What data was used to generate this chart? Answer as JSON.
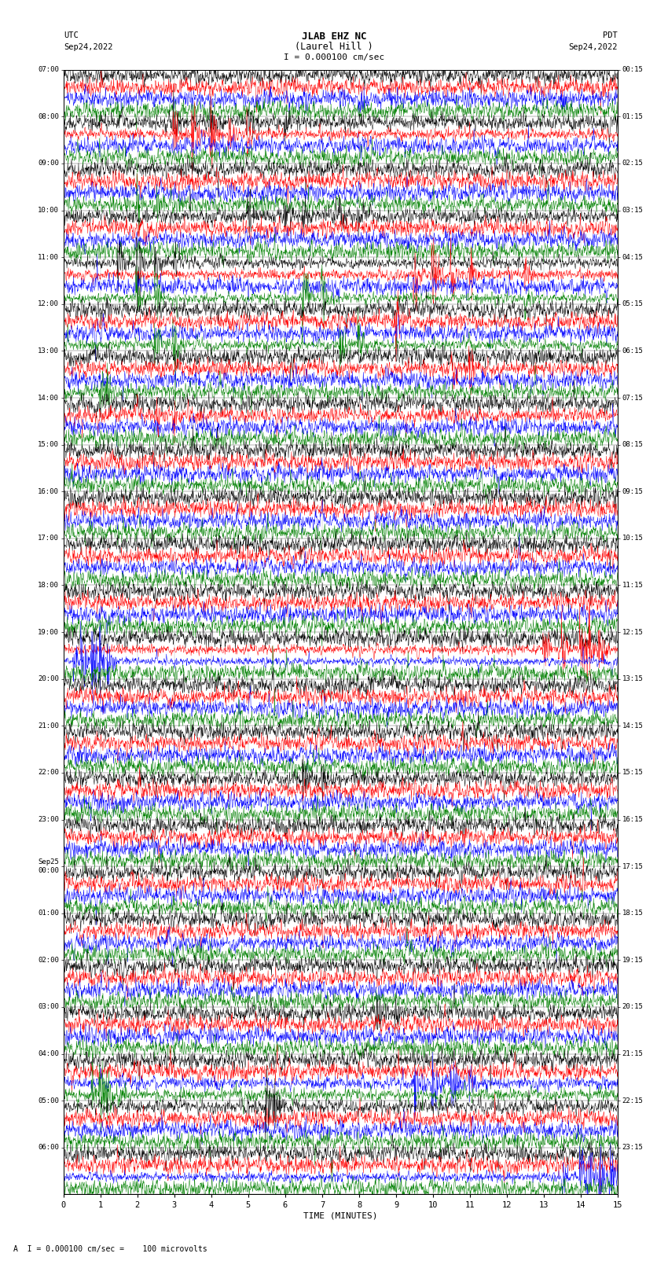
{
  "title_line1": "JLAB EHZ NC",
  "title_line2": "(Laurel Hill )",
  "scale_text": "I = 0.000100 cm/sec",
  "label_left_line1": "UTC",
  "label_left_line2": "Sep24,2022",
  "label_right_line1": "PDT",
  "label_right_line2": "Sep24,2022",
  "footer_text": "A  I = 0.000100 cm/sec =    100 microvolts",
  "xlabel": "TIME (MINUTES)",
  "utc_labels": [
    "07:00",
    "08:00",
    "09:00",
    "10:00",
    "11:00",
    "12:00",
    "13:00",
    "14:00",
    "15:00",
    "16:00",
    "17:00",
    "18:00",
    "19:00",
    "20:00",
    "21:00",
    "22:00",
    "23:00",
    "Sep25\n00:00",
    "01:00",
    "02:00",
    "03:00",
    "04:00",
    "05:00",
    "06:00"
  ],
  "pdt_labels": [
    "00:15",
    "01:15",
    "02:15",
    "03:15",
    "04:15",
    "05:15",
    "06:15",
    "07:15",
    "08:15",
    "09:15",
    "10:15",
    "11:15",
    "12:15",
    "13:15",
    "14:15",
    "15:15",
    "16:15",
    "17:15",
    "18:15",
    "19:15",
    "20:15",
    "21:15",
    "22:15",
    "23:15"
  ],
  "num_rows": 24,
  "traces_per_row": 4,
  "colors": [
    "black",
    "red",
    "blue",
    "green"
  ],
  "bg_color": "#ffffff",
  "minutes": 15,
  "fig_width": 8.5,
  "fig_height": 16.13,
  "dpi": 100,
  "events": [
    {
      "row": 0,
      "ti": 2,
      "times": [
        6.5,
        7.5,
        8.0,
        9.0,
        10.0,
        11.0,
        13.5
      ],
      "amps": [
        0.3,
        0.25,
        0.2,
        0.15,
        0.15,
        0.15,
        0.15
      ]
    },
    {
      "row": 1,
      "ti": 1,
      "times": [
        3.0,
        3.5,
        4.0,
        4.5,
        5.0
      ],
      "amps": [
        0.5,
        0.7,
        0.8,
        0.5,
        0.4
      ]
    },
    {
      "row": 1,
      "ti": 0,
      "times": [
        3.0,
        4.0,
        5.0,
        6.0
      ],
      "amps": [
        0.25,
        0.3,
        0.25,
        0.2
      ]
    },
    {
      "row": 2,
      "ti": 3,
      "times": [
        2.0,
        2.5
      ],
      "amps": [
        0.3,
        0.25
      ]
    },
    {
      "row": 3,
      "ti": 0,
      "times": [
        5.0,
        6.0,
        6.5,
        7.5,
        8.0
      ],
      "amps": [
        0.4,
        0.3,
        0.25,
        0.2,
        0.2
      ]
    },
    {
      "row": 4,
      "ti": 0,
      "times": [
        1.5,
        2.0,
        2.5,
        3.0
      ],
      "amps": [
        0.5,
        0.8,
        0.6,
        0.4
      ]
    },
    {
      "row": 4,
      "ti": 1,
      "times": [
        9.5,
        10.0,
        10.5,
        11.0,
        12.5
      ],
      "amps": [
        0.6,
        0.9,
        0.7,
        0.5,
        0.4
      ]
    },
    {
      "row": 4,
      "ti": 3,
      "times": [
        2.0,
        2.5,
        6.5,
        7.0,
        12.5
      ],
      "amps": [
        0.7,
        0.9,
        0.8,
        0.6,
        0.4
      ]
    },
    {
      "row": 5,
      "ti": 3,
      "times": [
        2.5,
        3.0,
        7.5,
        8.0
      ],
      "amps": [
        0.6,
        0.8,
        0.7,
        0.5
      ]
    },
    {
      "row": 5,
      "ti": 1,
      "times": [
        9.0
      ],
      "amps": [
        0.4
      ]
    },
    {
      "row": 6,
      "ti": 3,
      "times": [
        1.0,
        1.2
      ],
      "amps": [
        0.4,
        0.3
      ]
    },
    {
      "row": 6,
      "ti": 1,
      "times": [
        10.5,
        11.0
      ],
      "amps": [
        0.35,
        0.3
      ]
    },
    {
      "row": 7,
      "ti": 1,
      "times": [
        2.5,
        3.0
      ],
      "amps": [
        0.3,
        0.25
      ]
    },
    {
      "row": 12,
      "ti": 2,
      "times": [
        0.3,
        0.5,
        0.8,
        1.0,
        1.2
      ],
      "amps": [
        0.6,
        1.0,
        1.2,
        1.0,
        0.7
      ]
    },
    {
      "row": 12,
      "ti": 1,
      "times": [
        13.0,
        13.5,
        14.0,
        14.2,
        14.5
      ],
      "amps": [
        0.5,
        0.8,
        1.0,
        0.9,
        0.7
      ]
    },
    {
      "row": 15,
      "ti": 0,
      "times": [
        6.5,
        7.0
      ],
      "amps": [
        0.4,
        0.3
      ]
    },
    {
      "row": 20,
      "ti": 0,
      "times": [
        8.5,
        9.0
      ],
      "amps": [
        0.3,
        0.25
      ]
    },
    {
      "row": 21,
      "ti": 3,
      "times": [
        0.8,
        1.0,
        1.2,
        1.5
      ],
      "amps": [
        0.4,
        0.6,
        0.5,
        0.4
      ]
    },
    {
      "row": 21,
      "ti": 2,
      "times": [
        9.5,
        10.0,
        10.5,
        11.0
      ],
      "amps": [
        0.5,
        0.8,
        0.7,
        0.5
      ]
    },
    {
      "row": 22,
      "ti": 0,
      "times": [
        5.5,
        5.7
      ],
      "amps": [
        0.5,
        0.4
      ]
    },
    {
      "row": 23,
      "ti": 2,
      "times": [
        13.5,
        14.0,
        14.2,
        14.5,
        14.8
      ],
      "amps": [
        0.5,
        0.8,
        1.0,
        0.9,
        0.7
      ]
    }
  ]
}
